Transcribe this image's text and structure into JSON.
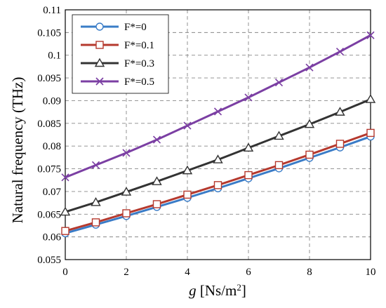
{
  "chart_data": {
    "type": "line",
    "title": "",
    "xlabel": "g [Ns/m²]",
    "xlabel_var": "g",
    "xlabel_unit_pre": " [Ns/m",
    "xlabel_unit_sup": "2",
    "xlabel_unit_post": "]",
    "ylabel": "Natural frequency (THz)",
    "xlim": [
      0,
      10
    ],
    "ylim": [
      0.055,
      0.11
    ],
    "x_ticks": [
      "0",
      "2",
      "4",
      "6",
      "8",
      "10"
    ],
    "y_ticks": [
      "0.055",
      "0.06",
      "0.065",
      "0.07",
      "0.075",
      "0.08",
      "0.085",
      "0.09",
      "0.095",
      "0.1",
      "0.105",
      "0.11"
    ],
    "grid": true,
    "legend_position": "top-left",
    "x": [
      0,
      1,
      2,
      3,
      4,
      5,
      6,
      7,
      8,
      9,
      10
    ],
    "series": [
      {
        "name": "F*=0",
        "color": "#3a7cc7",
        "marker": "circle",
        "values": [
          0.0608,
          0.0627,
          0.0646,
          0.0666,
          0.0686,
          0.0707,
          0.0729,
          0.0751,
          0.0774,
          0.0797,
          0.0821
        ]
      },
      {
        "name": "F*=0.1",
        "color": "#b5392e",
        "marker": "square",
        "values": [
          0.0613,
          0.0632,
          0.0652,
          0.0672,
          0.0693,
          0.0714,
          0.0736,
          0.0758,
          0.0781,
          0.0805,
          0.0829
        ]
      },
      {
        "name": "F*=0.3",
        "color": "#333333",
        "marker": "triangle",
        "values": [
          0.0655,
          0.0676,
          0.0699,
          0.0722,
          0.0746,
          0.077,
          0.0796,
          0.0822,
          0.0848,
          0.0875,
          0.0903
        ]
      },
      {
        "name": "F*=0.5",
        "color": "#7b3fa3",
        "marker": "x",
        "values": [
          0.0731,
          0.0758,
          0.0785,
          0.0814,
          0.0845,
          0.0876,
          0.0907,
          0.094,
          0.0973,
          0.1008,
          0.1044
        ]
      }
    ]
  }
}
